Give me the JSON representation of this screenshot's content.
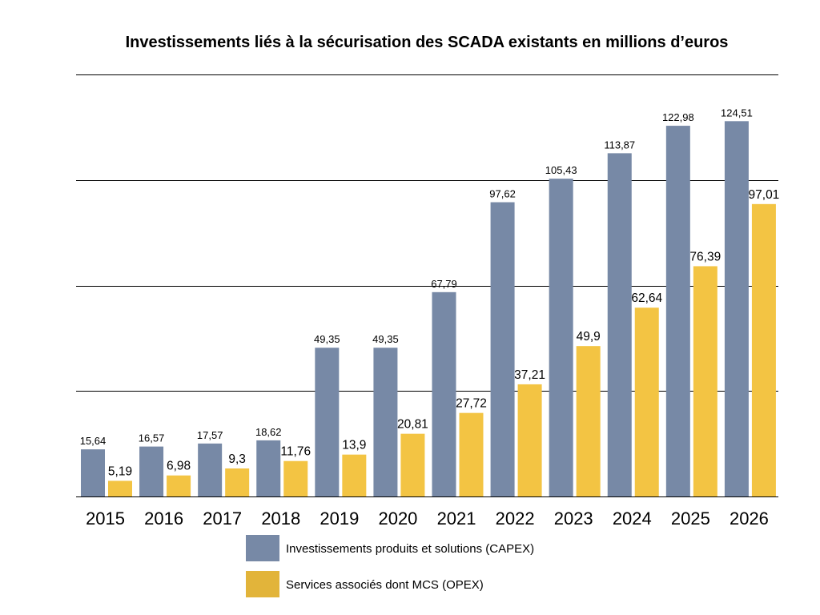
{
  "chart_data": {
    "type": "bar",
    "title": "Investissements liés à la sécurisation des SCADA existants en millions d’euros",
    "categories": [
      "2015",
      "2016",
      "2017",
      "2018",
      "2019",
      "2020",
      "2021",
      "2022",
      "2023",
      "2024",
      "2025",
      "2026"
    ],
    "series": [
      {
        "name": "Investissements produits et solutions (CAPEX)",
        "color": "#7789a6",
        "values": [
          15.64,
          16.57,
          17.57,
          18.62,
          49.35,
          49.35,
          67.79,
          97.62,
          105.43,
          113.87,
          122.98,
          124.51
        ],
        "labels": [
          "15,64",
          "16,57",
          "17,57",
          "18,62",
          "49,35",
          "49,35",
          "67,79",
          "97,62",
          "105,43",
          "113,87",
          "122,98",
          "124,51"
        ]
      },
      {
        "name": "Services associés dont MCS (OPEX)",
        "color": "#f3c443",
        "legend_color": "#e2b43a",
        "values": [
          5.19,
          6.98,
          9.3,
          11.76,
          13.9,
          20.81,
          27.72,
          37.21,
          49.9,
          62.64,
          76.39,
          97.01
        ],
        "labels": [
          "5,19",
          "6,98",
          "9,3",
          "11,76",
          "13,9",
          "20,81",
          "27,72",
          "37,21",
          "49,9",
          "62,64",
          "76,39",
          "97,01"
        ]
      }
    ],
    "ylim": [
      0,
      140
    ],
    "gridlines": [
      0,
      35,
      70,
      105,
      140
    ],
    "y_tick_labels_shown": false,
    "grid": true,
    "legend_position": "bottom"
  }
}
